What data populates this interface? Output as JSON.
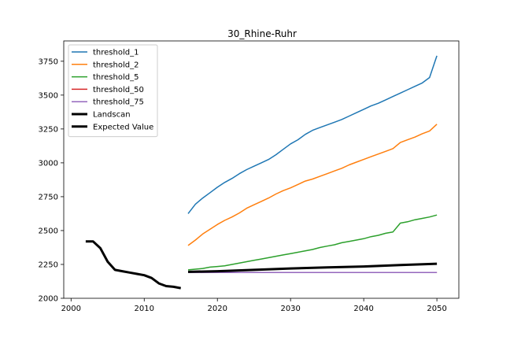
{
  "chart_data": {
    "type": "line",
    "title": "30_Rhine-Ruhr",
    "xlabel": "",
    "ylabel": "",
    "xlim": [
      1999,
      2053
    ],
    "ylim": [
      2000,
      3900
    ],
    "x_ticks": [
      2000,
      2010,
      2020,
      2030,
      2040,
      2050
    ],
    "y_ticks": [
      2000,
      2250,
      2500,
      2750,
      3000,
      3250,
      3500,
      3750
    ],
    "x_tick_labels": [
      "2000",
      "2010",
      "2020",
      "2030",
      "2040",
      "2050"
    ],
    "y_tick_labels": [
      "2000",
      "2250",
      "2500",
      "2750",
      "3000",
      "3250",
      "3500",
      "3750"
    ],
    "grid": false,
    "legend_position": "top-left",
    "series": [
      {
        "name": "threshold_1",
        "color": "#1f77b4",
        "width": "normal",
        "x": [
          2016,
          2017,
          2018,
          2019,
          2020,
          2021,
          2022,
          2023,
          2024,
          2025,
          2026,
          2027,
          2028,
          2029,
          2030,
          2031,
          2032,
          2033,
          2034,
          2035,
          2036,
          2037,
          2038,
          2039,
          2040,
          2041,
          2042,
          2043,
          2044,
          2045,
          2046,
          2047,
          2048,
          2049,
          2050
        ],
        "values": [
          2625,
          2695,
          2740,
          2780,
          2820,
          2855,
          2885,
          2920,
          2950,
          2975,
          3000,
          3025,
          3060,
          3100,
          3140,
          3170,
          3210,
          3240,
          3260,
          3280,
          3300,
          3320,
          3345,
          3370,
          3395,
          3420,
          3440,
          3465,
          3490,
          3515,
          3540,
          3565,
          3590,
          3630,
          3790
        ]
      },
      {
        "name": "threshold_2",
        "color": "#ff7f0e",
        "width": "normal",
        "x": [
          2016,
          2017,
          2018,
          2019,
          2020,
          2021,
          2022,
          2023,
          2024,
          2025,
          2026,
          2027,
          2028,
          2029,
          2030,
          2031,
          2032,
          2033,
          2034,
          2035,
          2036,
          2037,
          2038,
          2039,
          2040,
          2041,
          2042,
          2043,
          2044,
          2045,
          2046,
          2047,
          2048,
          2049,
          2050
        ],
        "values": [
          2390,
          2430,
          2475,
          2510,
          2545,
          2575,
          2600,
          2630,
          2665,
          2690,
          2715,
          2740,
          2770,
          2795,
          2815,
          2840,
          2865,
          2880,
          2900,
          2920,
          2940,
          2960,
          2985,
          3005,
          3025,
          3045,
          3065,
          3085,
          3105,
          3150,
          3170,
          3190,
          3215,
          3235,
          3285
        ]
      },
      {
        "name": "threshold_5",
        "color": "#2ca02c",
        "width": "normal",
        "x": [
          2016,
          2017,
          2018,
          2019,
          2020,
          2021,
          2022,
          2023,
          2024,
          2025,
          2026,
          2027,
          2028,
          2029,
          2030,
          2031,
          2032,
          2033,
          2034,
          2035,
          2036,
          2037,
          2038,
          2039,
          2040,
          2041,
          2042,
          2043,
          2044,
          2045,
          2046,
          2047,
          2048,
          2049,
          2050
        ],
        "values": [
          2210,
          2215,
          2220,
          2230,
          2235,
          2240,
          2250,
          2260,
          2270,
          2280,
          2290,
          2300,
          2310,
          2320,
          2330,
          2340,
          2350,
          2360,
          2375,
          2385,
          2395,
          2410,
          2420,
          2430,
          2440,
          2455,
          2465,
          2480,
          2490,
          2555,
          2565,
          2580,
          2590,
          2600,
          2615
        ]
      },
      {
        "name": "threshold_50",
        "color": "#d62728",
        "width": "normal",
        "x": [
          2016,
          2050
        ],
        "values": [
          2190,
          2190
        ]
      },
      {
        "name": "threshold_75",
        "color": "#9467bd",
        "width": "normal",
        "x": [
          2016,
          2050
        ],
        "values": [
          2190,
          2190
        ]
      },
      {
        "name": "Landscan",
        "color": "#000000",
        "width": "thick",
        "x": [
          2002,
          2003,
          2004,
          2005,
          2006,
          2007,
          2008,
          2009,
          2010,
          2011,
          2012,
          2013,
          2014,
          2015
        ],
        "values": [
          2420,
          2420,
          2370,
          2270,
          2210,
          2200,
          2190,
          2180,
          2170,
          2150,
          2110,
          2090,
          2085,
          2075
        ]
      },
      {
        "name": "Expected Value",
        "color": "#000000",
        "width": "thick",
        "x": [
          2016,
          2020,
          2025,
          2030,
          2035,
          2040,
          2045,
          2050
        ],
        "values": [
          2195,
          2200,
          2210,
          2220,
          2228,
          2235,
          2245,
          2255
        ]
      }
    ]
  }
}
